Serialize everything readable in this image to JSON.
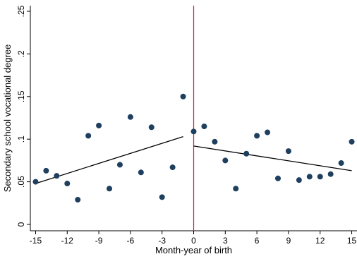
{
  "chart_data": {
    "type": "scatter",
    "xlabel": "Month-year of birth",
    "ylabel": "Secondary school vocational degree",
    "x_ticks": [
      -15,
      -12,
      -9,
      -6,
      -3,
      0,
      3,
      6,
      9,
      12,
      15
    ],
    "x_tick_labels": [
      "-15",
      "-12",
      "-9",
      "-6",
      "-3",
      "0",
      "3",
      "6",
      "9",
      "12",
      "15"
    ],
    "y_ticks": [
      0,
      0.05,
      0.1,
      0.15,
      0.2,
      0.25
    ],
    "y_tick_labels": [
      "0",
      ".05",
      ".1",
      ".15",
      ".2",
      ".25"
    ],
    "xlim": [
      -15.5,
      15.5
    ],
    "ylim": [
      0,
      0.25
    ],
    "grid": false,
    "cutoff_x": 0,
    "points": [
      {
        "x": -15,
        "y": 0.05
      },
      {
        "x": -14,
        "y": 0.063
      },
      {
        "x": -13,
        "y": 0.057
      },
      {
        "x": -12,
        "y": 0.048
      },
      {
        "x": -11,
        "y": 0.029
      },
      {
        "x": -10,
        "y": 0.104
      },
      {
        "x": -9,
        "y": 0.116
      },
      {
        "x": -8,
        "y": 0.042
      },
      {
        "x": -7,
        "y": 0.07
      },
      {
        "x": -6,
        "y": 0.126
      },
      {
        "x": -5,
        "y": 0.061
      },
      {
        "x": -4,
        "y": 0.114
      },
      {
        "x": -3,
        "y": 0.032
      },
      {
        "x": -2,
        "y": 0.067
      },
      {
        "x": -1,
        "y": 0.15
      },
      {
        "x": 0,
        "y": 0.109
      },
      {
        "x": 1,
        "y": 0.115
      },
      {
        "x": 2,
        "y": 0.097
      },
      {
        "x": 3,
        "y": 0.075
      },
      {
        "x": 4,
        "y": 0.042
      },
      {
        "x": 5,
        "y": 0.083
      },
      {
        "x": 6,
        "y": 0.104
      },
      {
        "x": 7,
        "y": 0.108
      },
      {
        "x": 8,
        "y": 0.054
      },
      {
        "x": 9,
        "y": 0.086
      },
      {
        "x": 10,
        "y": 0.052
      },
      {
        "x": 11,
        "y": 0.056
      },
      {
        "x": 12,
        "y": 0.056
      },
      {
        "x": 13,
        "y": 0.059
      },
      {
        "x": 14,
        "y": 0.072
      },
      {
        "x": 15,
        "y": 0.097
      }
    ],
    "fit_lines": [
      {
        "x": [
          -15,
          -1
        ],
        "y": [
          0.048,
          0.103
        ]
      },
      {
        "x": [
          0,
          15
        ],
        "y": [
          0.092,
          0.063
        ]
      }
    ],
    "colors": {
      "points": "#1f3f5f",
      "fit_line": "#000000",
      "cutoff_line": "#c0254a",
      "axis": "#000000"
    }
  }
}
